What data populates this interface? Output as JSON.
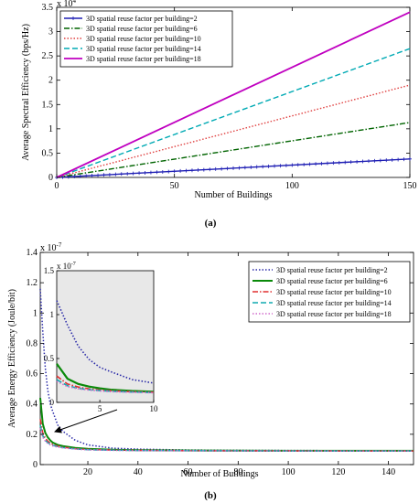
{
  "chart_data": [
    {
      "type": "line",
      "panel_label": "(a)",
      "xlabel": "Number of Buildings",
      "ylabel": "Average Spectral Efficiency (bps/Hz)",
      "xlim": [
        0,
        150
      ],
      "ylim": [
        0,
        35000
      ],
      "y_exponent_label": "x 10",
      "y_exponent_power": "4",
      "xticks": [
        0,
        50,
        100,
        150
      ],
      "xtick_labels": [
        "0",
        "50",
        "100",
        "150"
      ],
      "yticks": [
        0,
        5000,
        10000,
        15000,
        20000,
        25000,
        30000,
        35000
      ],
      "ytick_labels": [
        "0",
        "0.5",
        "1",
        "1.5",
        "2",
        "2.5",
        "3",
        "3.5"
      ],
      "grid": false,
      "legend_position": "top-left",
      "series": [
        {
          "name": "3D spatial reuse factor per building=2",
          "color": "#1f1fb4",
          "style": "marker-plus",
          "x": [
            0,
            150
          ],
          "y": [
            0,
            3800
          ]
        },
        {
          "name": "3D spatial reuse factor per building=6",
          "color": "#006400",
          "style": "dashdot",
          "x": [
            0,
            150
          ],
          "y": [
            0,
            11300
          ]
        },
        {
          "name": "3D spatial reuse factor per building=10",
          "color": "#e04040",
          "style": "dotted",
          "x": [
            0,
            150
          ],
          "y": [
            0,
            19000
          ]
        },
        {
          "name": "3D spatial reuse factor per building=14",
          "color": "#00aab4",
          "style": "dashed",
          "x": [
            0,
            150
          ],
          "y": [
            0,
            26500
          ]
        },
        {
          "name": "3D spatial reuse factor per building=18",
          "color": "#c000c0",
          "style": "solid",
          "x": [
            0,
            150
          ],
          "y": [
            0,
            34000
          ]
        }
      ]
    },
    {
      "type": "line",
      "panel_label": "(b)",
      "xlabel": "Number of Buildings",
      "ylabel": "Average Energy Efficiency (Joule/bit)",
      "xlim": [
        1,
        150
      ],
      "ylim": [
        0,
        1.4e-07
      ],
      "y_exponent_label": "x 10",
      "y_exponent_power": "-7",
      "xticks": [
        20,
        40,
        60,
        80,
        100,
        120,
        140
      ],
      "xtick_labels": [
        "20",
        "40",
        "60",
        "80",
        "100",
        "120",
        "140"
      ],
      "yticks": [
        0,
        2e-08,
        4e-08,
        6e-08,
        8e-08,
        1e-07,
        1.2e-07,
        1.4e-07
      ],
      "ytick_labels": [
        "0",
        "0.2",
        "0.4",
        "0.6",
        "0.8",
        "1",
        "1.2",
        "1.4"
      ],
      "grid": false,
      "legend_position": "top-right",
      "series": [
        {
          "name": "3D spatial reuse factor per building=2",
          "color": "#2a2aa8",
          "style": "dotted",
          "x": [
            1,
            2,
            3,
            4,
            5,
            6,
            8,
            10,
            15,
            20,
            30,
            40,
            60,
            80,
            100,
            120,
            150
          ],
          "y": [
            1.16e-07,
            8.8e-08,
            6.4e-08,
            4.9e-08,
            4e-08,
            3.5e-08,
            2.6e-08,
            2.2e-08,
            1.6e-08,
            1.3e-08,
            1.08e-08,
            1.02e-08,
            9.6e-09,
            9.4e-09,
            9.3e-09,
            9.2e-09,
            9.2e-09
          ]
        },
        {
          "name": "3D spatial reuse factor per building=6",
          "color": "#0a8a0a",
          "style": "solid",
          "x": [
            1,
            2,
            3,
            4,
            5,
            6,
            8,
            10,
            15,
            20,
            30,
            40,
            60,
            80,
            100,
            120,
            150
          ],
          "y": [
            4.4e-08,
            2.7e-08,
            2.1e-08,
            1.8e-08,
            1.6e-08,
            1.45e-08,
            1.3e-08,
            1.22e-08,
            1.1e-08,
            1.04e-08,
            9.8e-09,
            9.5e-09,
            9.3e-09,
            9.2e-09,
            9.1e-09,
            9.1e-09,
            9.1e-09
          ]
        },
        {
          "name": "3D spatial reuse factor per building=10",
          "color": "#e03030",
          "style": "dashdot",
          "x": [
            1,
            2,
            3,
            4,
            5,
            6,
            8,
            10,
            15,
            20,
            30,
            40,
            60,
            80,
            100,
            120,
            150
          ],
          "y": [
            3e-08,
            2.1e-08,
            1.75e-08,
            1.55e-08,
            1.42e-08,
            1.33e-08,
            1.22e-08,
            1.15e-08,
            1.05e-08,
            1e-08,
            9.6e-09,
            9.4e-09,
            9.2e-09,
            9.1e-09,
            9.1e-09,
            9e-09,
            9e-09
          ]
        },
        {
          "name": "3D spatial reuse factor per building=14",
          "color": "#10aab0",
          "style": "dashed",
          "x": [
            1,
            2,
            3,
            4,
            5,
            6,
            8,
            10,
            15,
            20,
            30,
            40,
            60,
            80,
            100,
            120,
            150
          ],
          "y": [
            2.6e-08,
            1.9e-08,
            1.6e-08,
            1.45e-08,
            1.35e-08,
            1.27e-08,
            1.18e-08,
            1.12e-08,
            1.03e-08,
            9.8e-09,
            9.5e-09,
            9.3e-09,
            9.2e-09,
            9.1e-09,
            9e-09,
            9e-09,
            9e-09
          ]
        },
        {
          "name": "3D spatial reuse factor per building=18",
          "color": "#d06acc",
          "style": "dotted",
          "x": [
            1,
            2,
            3,
            4,
            5,
            6,
            8,
            10,
            15,
            20,
            30,
            40,
            60,
            80,
            100,
            120,
            150
          ],
          "y": [
            2.4e-08,
            1.8e-08,
            1.55e-08,
            1.4e-08,
            1.3e-08,
            1.23e-08,
            1.15e-08,
            1.1e-08,
            1.02e-08,
            9.7e-09,
            9.4e-09,
            9.2e-09,
            9.1e-09,
            9e-09,
            9e-09,
            9e-09,
            9e-09
          ]
        }
      ],
      "inset": {
        "xlim": [
          1,
          10
        ],
        "ylim": [
          0,
          1.5e-07
        ],
        "xticks": [
          5,
          10
        ],
        "xtick_labels": [
          "5",
          "10"
        ],
        "yticks": [
          0,
          5e-08,
          1e-07,
          1.5e-07
        ],
        "ytick_labels": [
          "0",
          "0.5",
          "1",
          "1.5"
        ],
        "y_exponent_label": "x 10",
        "y_exponent_power": "-7",
        "background": "#e8e8e8"
      }
    }
  ]
}
